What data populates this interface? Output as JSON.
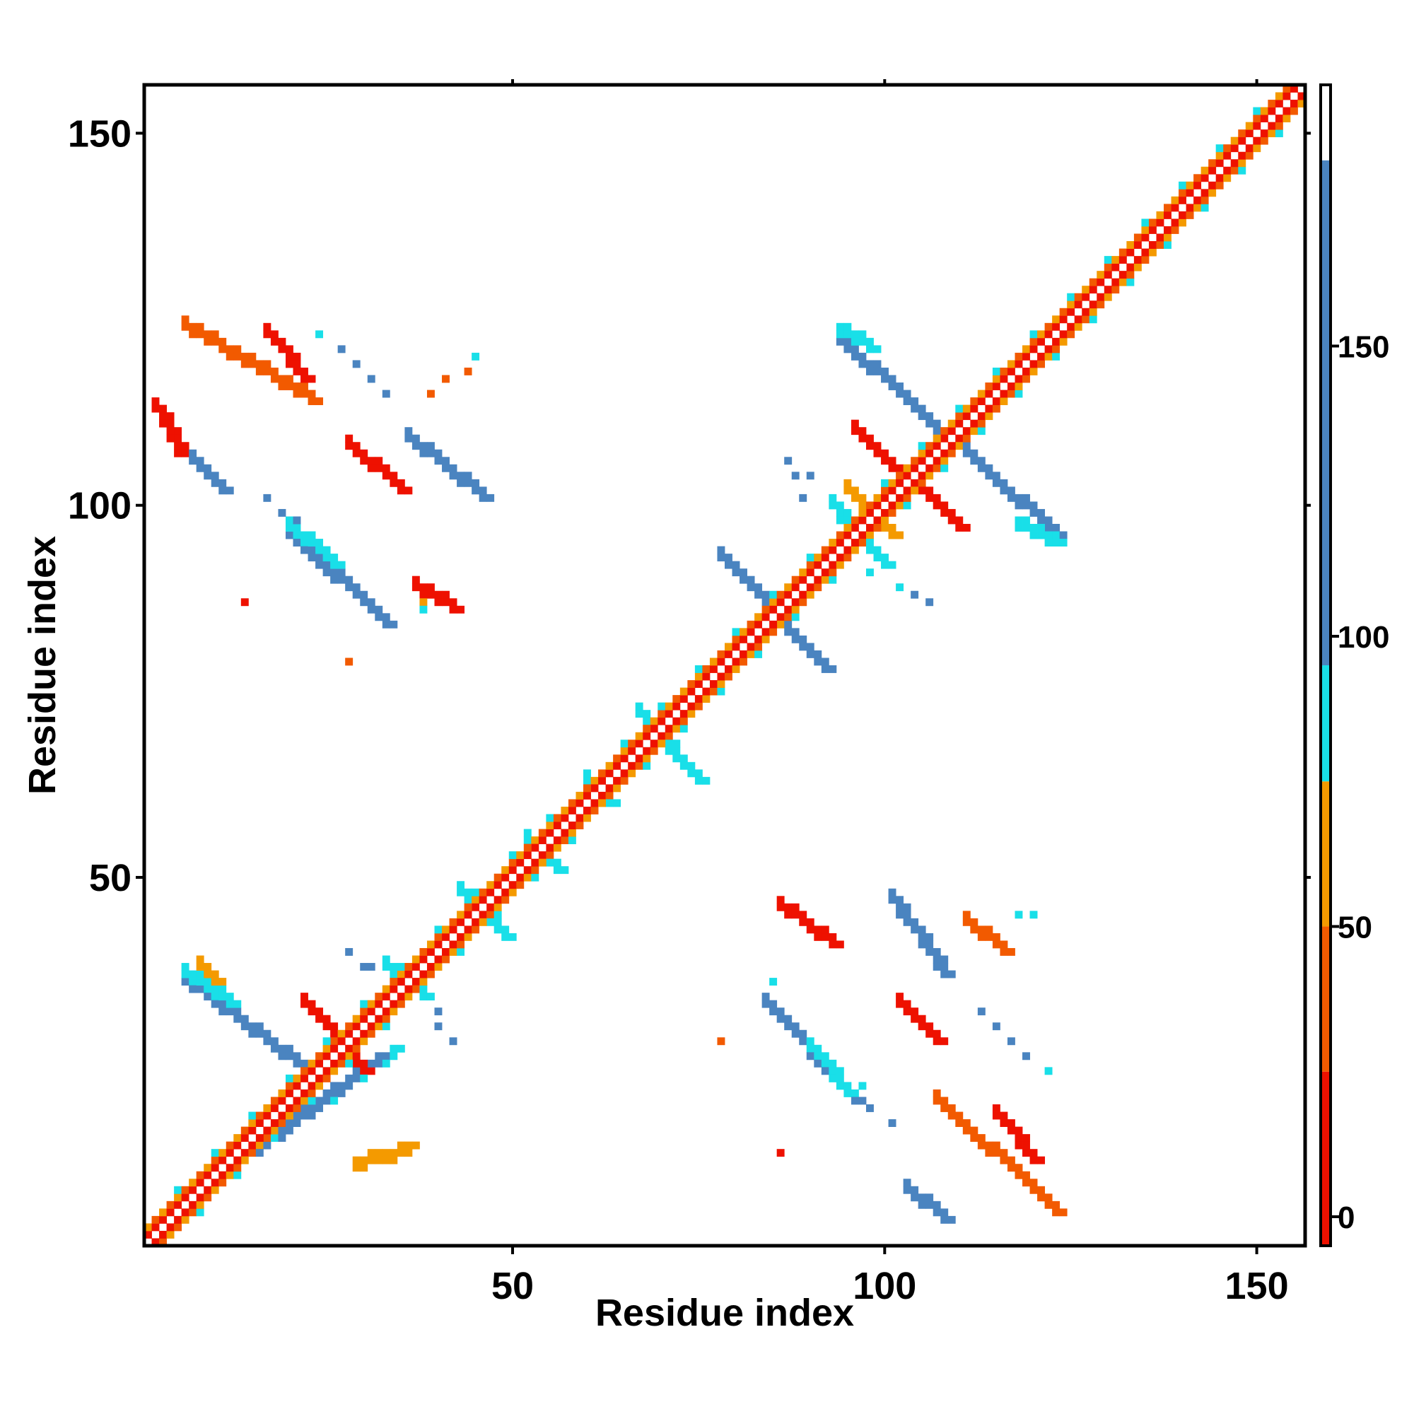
{
  "chart_data": {
    "type": "heatmap",
    "title": "",
    "xlabel": "Residue index",
    "ylabel": "Residue index",
    "xlim": [
      1,
      156
    ],
    "ylim": [
      1,
      156
    ],
    "xticks": [
      50,
      100,
      150
    ],
    "yticks": [
      50,
      100,
      150
    ],
    "xtick_labels": [
      "50",
      "100",
      "150"
    ],
    "ytick_labels": [
      "50",
      "100",
      "150"
    ],
    "grid": false,
    "colorbar": {
      "position": "right",
      "range": [
        -5,
        195
      ],
      "ticks": [
        0,
        50,
        100,
        150
      ],
      "tick_labels": [
        "0",
        "50",
        "100",
        "150"
      ],
      "bands": [
        {
          "from": -5,
          "to": 25,
          "color": "#ee1100"
        },
        {
          "from": 25,
          "to": 50,
          "color": "#f25a00"
        },
        {
          "from": 50,
          "to": 75,
          "color": "#f49a00"
        },
        {
          "from": 75,
          "to": 95,
          "color": "#19dfe8"
        },
        {
          "from": 95,
          "to": 182,
          "color": "#4a84c0"
        },
        {
          "from": 182,
          "to": 195,
          "color": "#ffffff"
        }
      ]
    },
    "diagonal": {
      "x_range": [
        1,
        156
      ],
      "pattern_colors": [
        "#ee1100",
        "#f49a00",
        "#f25a00",
        "#19dfe8"
      ]
    },
    "blocks": [
      {
        "x": [
          14,
          34
        ],
        "y": [
          13,
          27
        ],
        "color": "#19dfe8",
        "orientation": "anti"
      },
      {
        "x": [
          16,
          32
        ],
        "y": [
          14,
          26
        ],
        "color": "#4a84c0",
        "orientation": "anti"
      },
      {
        "x": [
          29,
          36
        ],
        "y": [
          12,
          14
        ],
        "color": "#f49a00",
        "orientation": "anti"
      },
      {
        "x": [
          6,
          21
        ],
        "y": [
          36,
          25
        ],
        "color": "#4a84c0",
        "orientation": "anti"
      },
      {
        "x": [
          6,
          12
        ],
        "y": [
          37,
          33
        ],
        "color": "#19dfe8",
        "orientation": "anti"
      },
      {
        "x": [
          8,
          10
        ],
        "y": [
          38,
          36
        ],
        "color": "#f49a00",
        "orientation": "anti"
      },
      {
        "x": [
          22,
          30
        ],
        "y": [
          33,
          24
        ],
        "color": "#ee1100",
        "orientation": "parallel"
      },
      {
        "x": [
          33,
          38
        ],
        "y": [
          38,
          34
        ],
        "color": "#19dfe8",
        "orientation": "parallel"
      },
      {
        "x": [
          43,
          49
        ],
        "y": [
          48,
          42
        ],
        "color": "#19dfe8",
        "orientation": "parallel"
      },
      {
        "x": [
          52,
          56
        ],
        "y": [
          55,
          51
        ],
        "color": "#19dfe8",
        "orientation": "parallel"
      },
      {
        "x": [
          60,
          63
        ],
        "y": [
          63,
          60
        ],
        "color": "#19dfe8",
        "orientation": "parallel"
      },
      {
        "x": [
          67,
          75
        ],
        "y": [
          72,
          63
        ],
        "color": "#19dfe8",
        "orientation": "parallel"
      },
      {
        "x": [
          78,
          92
        ],
        "y": [
          93,
          78
        ],
        "color": "#4a84c0",
        "orientation": "anti"
      },
      {
        "x": [
          93,
          100
        ],
        "y": [
          100,
          92
        ],
        "color": "#19dfe8",
        "orientation": "parallel"
      },
      {
        "x": [
          95,
          101
        ],
        "y": [
          102,
          96
        ],
        "color": "#f49a00",
        "orientation": "parallel"
      },
      {
        "x": [
          96,
          110
        ],
        "y": [
          110,
          97
        ],
        "color": "#ee1100",
        "orientation": "parallel"
      },
      {
        "x": [
          94,
          123
        ],
        "y": [
          122,
          96
        ],
        "color": "#4a84c0",
        "orientation": "anti"
      },
      {
        "x": [
          94,
          98
        ],
        "y": [
          123,
          121
        ],
        "color": "#19dfe8",
        "orientation": "anti"
      },
      {
        "x": [
          118,
          123
        ],
        "y": [
          97,
          95
        ],
        "color": "#19dfe8",
        "orientation": "anti"
      },
      {
        "x": [
          2,
          5
        ],
        "y": [
          113,
          107
        ],
        "color": "#ee1100",
        "orientation": "parallel"
      },
      {
        "x": [
          6,
          23
        ],
        "y": [
          124,
          114
        ],
        "color": "#f25a00",
        "orientation": "parallel"
      },
      {
        "x": [
          17,
          22
        ],
        "y": [
          123,
          117
        ],
        "color": "#ee1100",
        "orientation": "parallel"
      },
      {
        "x": [
          7,
          11
        ],
        "y": [
          106,
          102
        ],
        "color": "#4a84c0",
        "orientation": "anti"
      },
      {
        "x": [
          28,
          35
        ],
        "y": [
          108,
          102
        ],
        "color": "#ee1100",
        "orientation": "parallel"
      },
      {
        "x": [
          36,
          46
        ],
        "y": [
          109,
          101
        ],
        "color": "#4a84c0",
        "orientation": "anti"
      },
      {
        "x": [
          20,
          33
        ],
        "y": [
          96,
          84
        ],
        "color": "#4a84c0",
        "orientation": "anti"
      },
      {
        "x": [
          20,
          26
        ],
        "y": [
          97,
          92
        ],
        "color": "#19dfe8",
        "orientation": "anti"
      },
      {
        "x": [
          37,
          42
        ],
        "y": [
          89,
          86
        ],
        "color": "#ee1100",
        "orientation": "parallel"
      },
      {
        "x": [
          86,
          93
        ],
        "y": [
          46,
          41
        ],
        "color": "#ee1100",
        "orientation": "parallel"
      },
      {
        "x": [
          101,
          108
        ],
        "y": [
          47,
          37
        ],
        "color": "#4a84c0",
        "orientation": "anti"
      },
      {
        "x": [
          84,
          96
        ],
        "y": [
          33,
          20
        ],
        "color": "#4a84c0",
        "orientation": "anti"
      },
      {
        "x": [
          90,
          95
        ],
        "y": [
          27,
          21
        ],
        "color": "#19dfe8",
        "orientation": "anti"
      },
      {
        "x": [
          102,
          107
        ],
        "y": [
          33,
          28
        ],
        "color": "#ee1100",
        "orientation": "parallel"
      },
      {
        "x": [
          107,
          123
        ],
        "y": [
          20,
          5
        ],
        "color": "#f25a00",
        "orientation": "parallel"
      },
      {
        "x": [
          115,
          120
        ],
        "y": [
          18,
          12
        ],
        "color": "#ee1100",
        "orientation": "parallel"
      },
      {
        "x": [
          103,
          108
        ],
        "y": [
          8,
          4
        ],
        "color": "#4a84c0",
        "orientation": "anti"
      },
      {
        "x": [
          111,
          116
        ],
        "y": [
          44,
          40
        ],
        "color": "#f25a00",
        "orientation": "parallel"
      }
    ],
    "points": [
      {
        "x": 14,
        "y": 87,
        "color": "#ee1100"
      },
      {
        "x": 28,
        "y": 79,
        "color": "#f25a00"
      },
      {
        "x": 38,
        "y": 87,
        "color": "#f49a00"
      },
      {
        "x": 38,
        "y": 86,
        "color": "#19dfe8"
      },
      {
        "x": 28,
        "y": 40,
        "color": "#4a84c0"
      },
      {
        "x": 30,
        "y": 38,
        "color": "#4a84c0"
      },
      {
        "x": 31,
        "y": 38,
        "color": "#4a84c0"
      },
      {
        "x": 40,
        "y": 32,
        "color": "#4a84c0"
      },
      {
        "x": 40,
        "y": 30,
        "color": "#4a84c0"
      },
      {
        "x": 42,
        "y": 28,
        "color": "#4a84c0"
      },
      {
        "x": 78,
        "y": 28,
        "color": "#f25a00"
      },
      {
        "x": 86,
        "y": 13,
        "color": "#ee1100"
      },
      {
        "x": 85,
        "y": 36,
        "color": "#19dfe8"
      },
      {
        "x": 97,
        "y": 22,
        "color": "#19dfe8"
      },
      {
        "x": 98,
        "y": 19,
        "color": "#4a84c0"
      },
      {
        "x": 101,
        "y": 17,
        "color": "#4a84c0"
      },
      {
        "x": 113,
        "y": 32,
        "color": "#4a84c0"
      },
      {
        "x": 115,
        "y": 30,
        "color": "#4a84c0"
      },
      {
        "x": 117,
        "y": 28,
        "color": "#4a84c0"
      },
      {
        "x": 119,
        "y": 26,
        "color": "#4a84c0"
      },
      {
        "x": 122,
        "y": 24,
        "color": "#19dfe8"
      },
      {
        "x": 118,
        "y": 45,
        "color": "#19dfe8"
      },
      {
        "x": 120,
        "y": 45,
        "color": "#19dfe8"
      },
      {
        "x": 24,
        "y": 123,
        "color": "#19dfe8"
      },
      {
        "x": 27,
        "y": 121,
        "color": "#4a84c0"
      },
      {
        "x": 29,
        "y": 119,
        "color": "#4a84c0"
      },
      {
        "x": 31,
        "y": 117,
        "color": "#4a84c0"
      },
      {
        "x": 33,
        "y": 115,
        "color": "#4a84c0"
      },
      {
        "x": 39,
        "y": 115,
        "color": "#f25a00"
      },
      {
        "x": 41,
        "y": 117,
        "color": "#f25a00"
      },
      {
        "x": 44,
        "y": 118,
        "color": "#f25a00"
      },
      {
        "x": 45,
        "y": 120,
        "color": "#19dfe8"
      },
      {
        "x": 17,
        "y": 101,
        "color": "#4a84c0"
      },
      {
        "x": 19,
        "y": 99,
        "color": "#4a84c0"
      },
      {
        "x": 21,
        "y": 98,
        "color": "#4a84c0"
      },
      {
        "x": 87,
        "y": 106,
        "color": "#4a84c0"
      },
      {
        "x": 88,
        "y": 104,
        "color": "#4a84c0"
      },
      {
        "x": 90,
        "y": 104,
        "color": "#4a84c0"
      },
      {
        "x": 89,
        "y": 101,
        "color": "#4a84c0"
      },
      {
        "x": 94,
        "y": 98,
        "color": "#19dfe8"
      },
      {
        "x": 98,
        "y": 91,
        "color": "#19dfe8"
      },
      {
        "x": 102,
        "y": 89,
        "color": "#19dfe8"
      },
      {
        "x": 104,
        "y": 88,
        "color": "#4a84c0"
      },
      {
        "x": 106,
        "y": 87,
        "color": "#4a84c0"
      }
    ]
  }
}
